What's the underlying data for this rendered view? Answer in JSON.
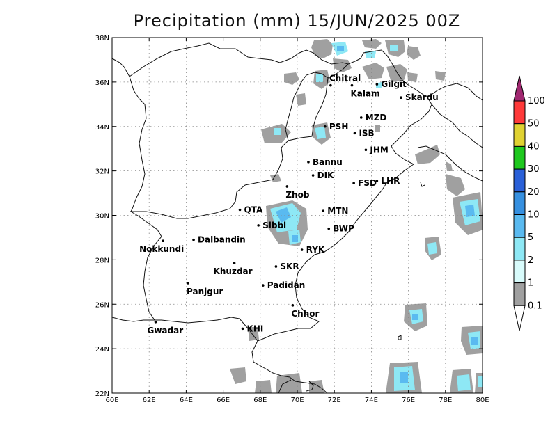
{
  "title": "Precipitation (mm) 15/JUN/2025 00Z",
  "map": {
    "lon_range": [
      60,
      80
    ],
    "lat_range": [
      22,
      38
    ],
    "lon_ticks": [
      "60E",
      "62E",
      "64E",
      "66E",
      "68E",
      "70E",
      "72E",
      "74E",
      "76E",
      "78E",
      "80E"
    ],
    "lat_ticks": [
      "22N",
      "24N",
      "26N",
      "28N",
      "30N",
      "32N",
      "34N",
      "36N",
      "38N"
    ],
    "grid": true
  },
  "stations": [
    {
      "name": "Chitral",
      "lon": 71.8,
      "lat": 35.85
    },
    {
      "name": "Kalam",
      "lon": 72.95,
      "lat": 35.85
    },
    {
      "name": "Gilgit",
      "lon": 74.3,
      "lat": 35.9
    },
    {
      "name": "Skardu",
      "lon": 75.6,
      "lat": 35.3
    },
    {
      "name": "MZD",
      "lon": 73.45,
      "lat": 34.4
    },
    {
      "name": "PSH",
      "lon": 71.5,
      "lat": 34.0
    },
    {
      "name": "ISB",
      "lon": 73.1,
      "lat": 33.7
    },
    {
      "name": "JHM",
      "lon": 73.7,
      "lat": 32.95
    },
    {
      "name": "Bannu",
      "lon": 70.6,
      "lat": 32.4
    },
    {
      "name": "DIK",
      "lon": 70.85,
      "lat": 31.8
    },
    {
      "name": "FSD",
      "lon": 73.05,
      "lat": 31.45
    },
    {
      "name": "LHR",
      "lon": 74.3,
      "lat": 31.55
    },
    {
      "name": "Zhob",
      "lon": 69.45,
      "lat": 31.3
    },
    {
      "name": "QTA",
      "lon": 66.9,
      "lat": 30.25
    },
    {
      "name": "MTN",
      "lon": 71.4,
      "lat": 30.2
    },
    {
      "name": "Sibbi",
      "lon": 67.9,
      "lat": 29.55
    },
    {
      "name": "BWP",
      "lon": 71.7,
      "lat": 29.4
    },
    {
      "name": "Dalbandin",
      "lon": 64.4,
      "lat": 28.9
    },
    {
      "name": "Nokkundi",
      "lon": 62.75,
      "lat": 28.85
    },
    {
      "name": "RYK",
      "lon": 70.25,
      "lat": 28.45
    },
    {
      "name": "Khuzdar",
      "lon": 66.6,
      "lat": 27.85
    },
    {
      "name": "SKR",
      "lon": 68.85,
      "lat": 27.7
    },
    {
      "name": "Panjgur",
      "lon": 64.1,
      "lat": 26.95
    },
    {
      "name": "Padidan",
      "lon": 68.15,
      "lat": 26.85
    },
    {
      "name": "Chhor",
      "lon": 69.75,
      "lat": 25.95
    },
    {
      "name": "KHI",
      "lon": 67.05,
      "lat": 24.9
    },
    {
      "name": "Gwadar",
      "lon": 62.35,
      "lat": 25.2
    }
  ],
  "colorbar": {
    "levels": [
      "0.1",
      "1",
      "2",
      "5",
      "10",
      "20",
      "30",
      "40",
      "50",
      "100"
    ],
    "colors": [
      "#a0a0a0",
      "#d8fbfb",
      "#8ee8f5",
      "#5abaf0",
      "#3690e0",
      "#2a60d8",
      "#1ec81e",
      "#e0d232",
      "#ff3a3a",
      "#a02870"
    ]
  },
  "precip_colors": {
    "light": "#a0a0a0",
    "cyan": "#8ee8f5",
    "blue": "#5abaf0"
  }
}
